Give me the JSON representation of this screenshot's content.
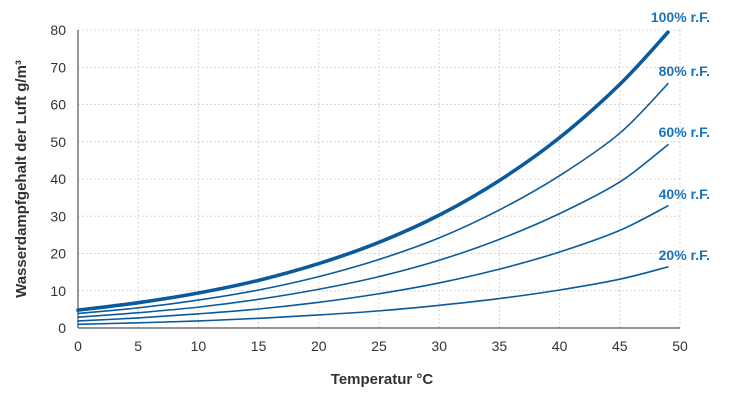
{
  "chart_data": {
    "type": "line",
    "title": "",
    "xlabel": "Temperatur °C",
    "ylabel": "Wasserdampfgehalt der Luft g/m³",
    "xlim": [
      0,
      50
    ],
    "ylim": [
      0,
      80
    ],
    "xticks": [
      0,
      5,
      10,
      15,
      20,
      25,
      30,
      35,
      40,
      45,
      50
    ],
    "yticks": [
      0,
      10,
      20,
      30,
      40,
      50,
      60,
      70,
      80
    ],
    "grid": true,
    "legend": "inline labels at right end of each line",
    "line_color": "#0a5a9c",
    "label_color": "#1a73b8",
    "x": [
      0,
      5,
      10,
      15,
      20,
      25,
      30,
      35,
      40,
      45,
      49
    ],
    "series": [
      {
        "name": "100% r.F.",
        "values": [
          4.8,
          6.8,
          9.4,
          12.8,
          17.3,
          23.0,
          30.3,
          39.6,
          51.1,
          65.4,
          79.4
        ],
        "bold": true
      },
      {
        "name": "80% r.F.",
        "values": [
          3.9,
          5.4,
          7.5,
          10.2,
          13.8,
          18.4,
          24.2,
          31.7,
          40.9,
          52.3,
          65.6
        ]
      },
      {
        "name": "60% r.F.",
        "values": [
          2.9,
          4.1,
          5.6,
          7.7,
          10.4,
          13.8,
          18.2,
          23.8,
          30.7,
          39.2,
          49.2
        ]
      },
      {
        "name": "40% r.F.",
        "values": [
          1.9,
          2.7,
          3.8,
          5.1,
          6.9,
          9.2,
          12.1,
          15.8,
          20.4,
          26.2,
          32.8
        ]
      },
      {
        "name": "20% r.F.",
        "values": [
          1.0,
          1.4,
          1.9,
          2.6,
          3.5,
          4.6,
          6.1,
          7.9,
          10.2,
          13.1,
          16.4
        ]
      }
    ]
  }
}
